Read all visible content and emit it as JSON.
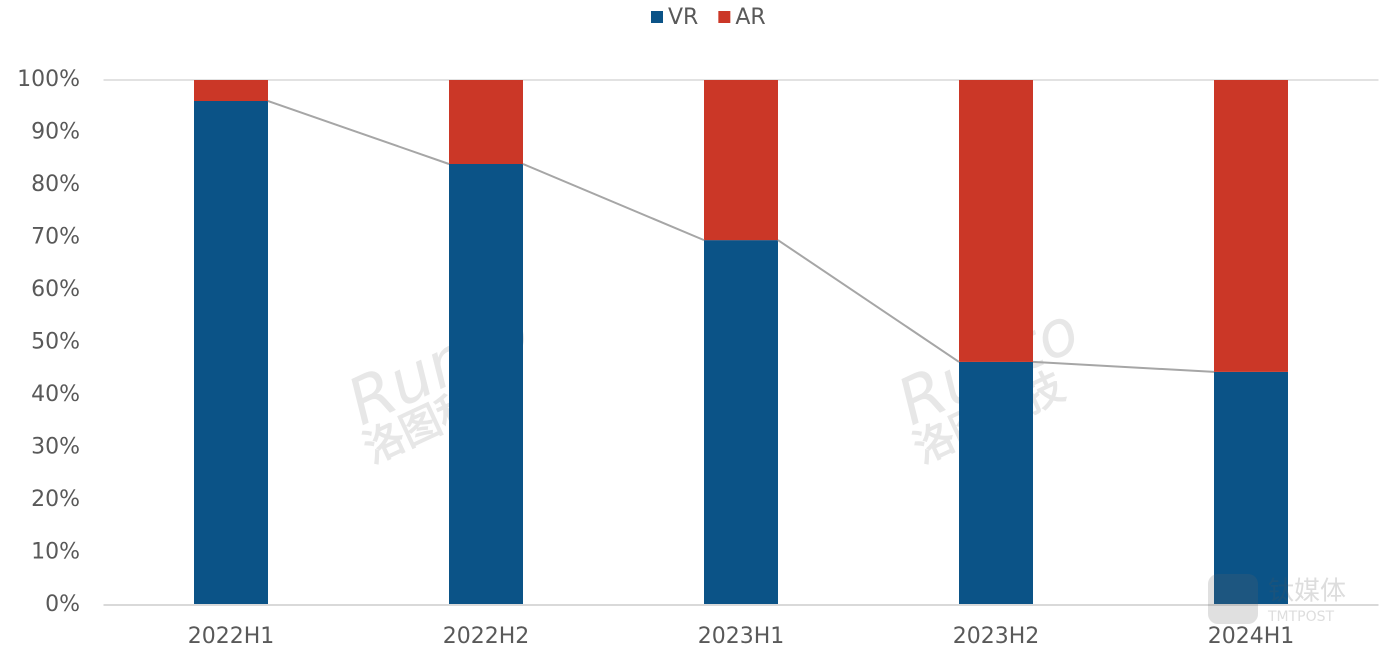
{
  "chart_data": {
    "type": "stacked_bar",
    "categories": [
      "2022H1",
      "2022H2",
      "2023H1",
      "2023H2",
      "2024H1"
    ],
    "series": [
      {
        "name": "VR",
        "color": "#0b5387",
        "values": [
          96,
          84,
          69.5,
          46.3,
          44.4
        ]
      },
      {
        "name": "AR",
        "color": "#cb3727",
        "values": [
          4,
          16,
          30.5,
          53.7,
          55.6
        ]
      }
    ],
    "ylim": [
      0,
      100
    ],
    "yticks": [
      {
        "value": 0,
        "label": "0%"
      },
      {
        "value": 10,
        "label": "10%"
      },
      {
        "value": 20,
        "label": "20%"
      },
      {
        "value": 30,
        "label": "30%"
      },
      {
        "value": 40,
        "label": "40%"
      },
      {
        "value": 50,
        "label": "50%"
      },
      {
        "value": 60,
        "label": "60%"
      },
      {
        "value": 70,
        "label": "70%"
      },
      {
        "value": 80,
        "label": "80%"
      },
      {
        "value": 90,
        "label": "90%"
      },
      {
        "value": 100,
        "label": "100%"
      }
    ],
    "grid": false,
    "series_lines": true,
    "series_line_color": "#a6a6a6",
    "legend": "top",
    "watermarks": [
      "Runto",
      "洛图科技",
      "钛媒体",
      "TMTPOST"
    ]
  }
}
